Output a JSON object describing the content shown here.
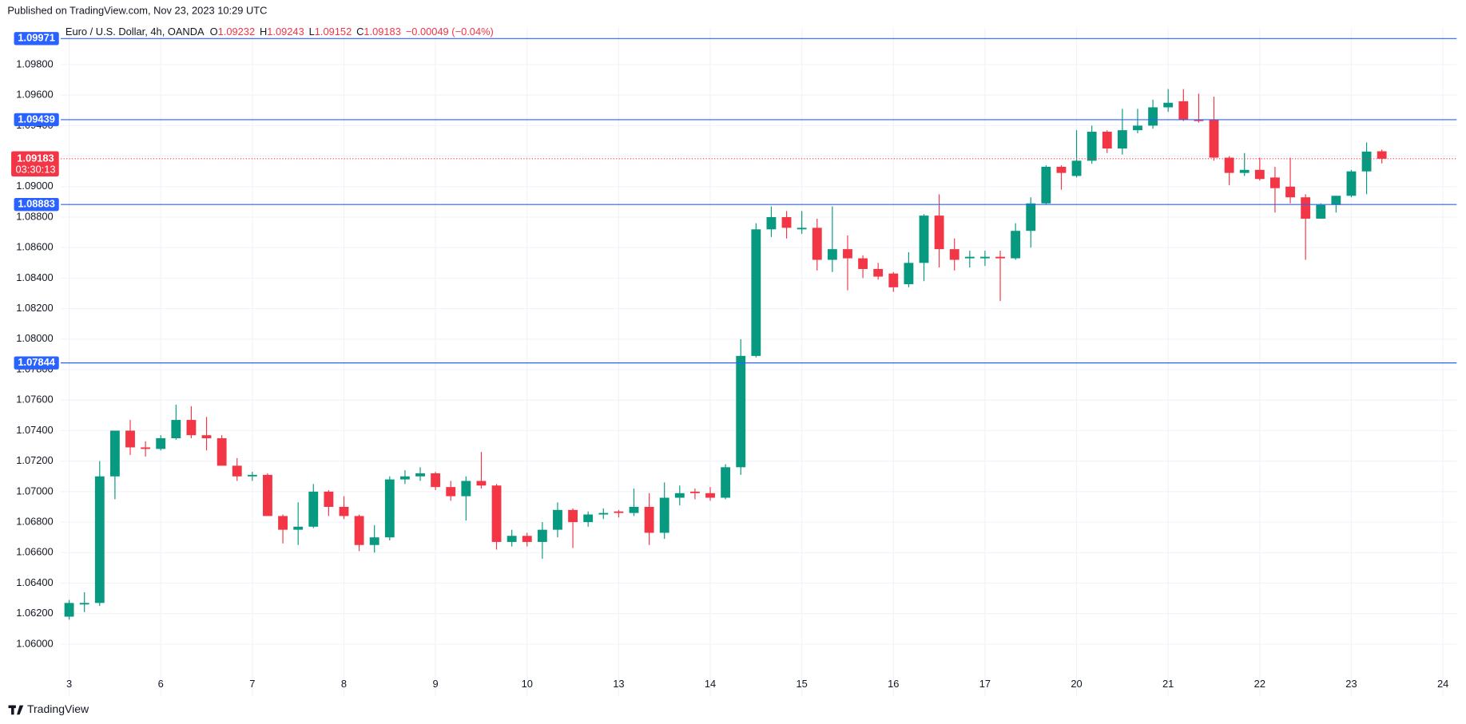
{
  "header": {
    "published": "Published on TradingView.com, Nov 23, 2023 10:29 UTC"
  },
  "footer": {
    "brand": "TradingView"
  },
  "legend": {
    "symbol": "Euro / U.S. Dollar, 4h, OANDA",
    "ohlc": [
      {
        "key": "O",
        "value": "1.09232"
      },
      {
        "key": "H",
        "value": "1.09243"
      },
      {
        "key": "L",
        "value": "1.09152"
      },
      {
        "key": "C",
        "value": "1.09183"
      }
    ],
    "change": "−0.00049 (−0.04%)"
  },
  "chart_data": {
    "type": "candlestick",
    "up_color": "#089981",
    "down_color": "#f23645",
    "grid": true,
    "open": [
      1.0618,
      1.0626,
      1.0627,
      1.071,
      1.074,
      1.0729,
      1.0728,
      1.0735,
      1.0747,
      1.0737,
      1.0735,
      1.0717,
      1.071,
      1.0711,
      1.0684,
      1.0675,
      1.0677,
      1.07,
      1.069,
      1.0684,
      1.0665,
      1.067,
      1.0708,
      1.071,
      1.0712,
      1.0703,
      1.0697,
      1.0707,
      1.0704,
      1.0667,
      1.0671,
      1.0667,
      1.0675,
      1.0688,
      1.068,
      1.0685,
      1.0687,
      1.0686,
      1.069,
      1.0673,
      1.0696,
      1.07,
      1.0699,
      1.0696,
      1.0716,
      1.0789,
      1.0872,
      1.088,
      1.0872,
      1.0873,
      1.0852,
      1.0859,
      1.0853,
      1.0846,
      1.0843,
      1.0836,
      1.085,
      1.0881,
      1.0859,
      1.0853,
      1.0853,
      1.0854,
      1.0853,
      1.0871,
      1.0889,
      1.0913,
      1.0907,
      1.0917,
      1.0936,
      1.0925,
      1.0937,
      1.094,
      1.0952,
      1.0956,
      1.0944,
      1.0944,
      1.0919,
      1.0909,
      1.0911,
      1.0906,
      1.09,
      1.0893,
      1.0879,
      1.0888,
      1.0894,
      1.091,
      1.09232
    ],
    "high": [
      1.0629,
      1.0634,
      1.072,
      1.074,
      1.0747,
      1.0733,
      1.0737,
      1.0757,
      1.0756,
      1.0749,
      1.0737,
      1.0722,
      1.0713,
      1.0712,
      1.0685,
      1.0693,
      1.0705,
      1.0701,
      1.0697,
      1.0685,
      1.0678,
      1.071,
      1.0714,
      1.0716,
      1.0713,
      1.0707,
      1.071,
      1.0726,
      1.0705,
      1.0675,
      1.0673,
      1.068,
      1.0693,
      1.0689,
      1.0687,
      1.0689,
      1.0688,
      1.0702,
      1.0699,
      1.0706,
      1.0704,
      1.0702,
      1.0703,
      1.0718,
      1.08,
      1.0876,
      1.0887,
      1.0884,
      1.0884,
      1.0879,
      1.0887,
      1.0868,
      1.0855,
      1.085,
      1.0844,
      1.0857,
      1.0882,
      1.0895,
      1.0866,
      1.0858,
      1.0858,
      1.0858,
      1.0876,
      1.0893,
      1.0914,
      1.0914,
      1.0937,
      1.094,
      1.0937,
      1.0951,
      1.0951,
      1.0957,
      1.0964,
      1.0964,
      1.0961,
      1.0959,
      1.092,
      1.0922,
      1.0919,
      1.0913,
      1.0919,
      1.0895,
      1.0889,
      1.0894,
      1.0911,
      1.0929,
      1.09243
    ],
    "low": [
      1.0616,
      1.0621,
      1.0625,
      1.0695,
      1.0724,
      1.0723,
      1.0727,
      1.0734,
      1.0735,
      1.0727,
      1.0717,
      1.0707,
      1.0707,
      1.0684,
      1.0666,
      1.0665,
      1.0676,
      1.0684,
      1.0682,
      1.0661,
      1.066,
      1.0668,
      1.0705,
      1.0707,
      1.0701,
      1.0694,
      1.0681,
      1.0702,
      1.0662,
      1.0664,
      1.0664,
      1.0656,
      1.067,
      1.0663,
      1.0677,
      1.0682,
      1.0683,
      1.0684,
      1.0665,
      1.0669,
      1.0691,
      1.0695,
      1.0694,
      1.0695,
      1.0711,
      1.0788,
      1.0867,
      1.0866,
      1.0869,
      1.0845,
      1.0844,
      1.0832,
      1.084,
      1.0839,
      1.0831,
      1.0834,
      1.0838,
      1.0847,
      1.0845,
      1.0847,
      1.0848,
      1.0825,
      1.0852,
      1.086,
      1.0888,
      1.0898,
      1.0906,
      1.0915,
      1.0922,
      1.0921,
      1.0935,
      1.0938,
      1.0949,
      1.0943,
      1.0942,
      1.0917,
      1.0901,
      1.0907,
      1.0904,
      1.0883,
      1.0889,
      1.0852,
      1.0879,
      1.0883,
      1.0893,
      1.0895,
      1.09152
    ],
    "close": [
      1.0627,
      1.0627,
      1.071,
      1.074,
      1.0729,
      1.0728,
      1.0735,
      1.0747,
      1.0737,
      1.0735,
      1.0717,
      1.071,
      1.0711,
      1.0684,
      1.0675,
      1.0677,
      1.07,
      1.069,
      1.0684,
      1.0665,
      1.067,
      1.0708,
      1.071,
      1.0712,
      1.0703,
      1.0697,
      1.0707,
      1.0704,
      1.0667,
      1.0671,
      1.0667,
      1.0675,
      1.0688,
      1.068,
      1.0685,
      1.0686,
      1.0686,
      1.069,
      1.0673,
      1.0696,
      1.0699,
      1.0699,
      1.0696,
      1.0716,
      1.0789,
      1.0872,
      1.088,
      1.0873,
      1.0873,
      1.0852,
      1.0859,
      1.0853,
      1.0846,
      1.0841,
      1.0834,
      1.085,
      1.0881,
      1.0859,
      1.0852,
      1.0854,
      1.0854,
      1.0853,
      1.0871,
      1.0889,
      1.0913,
      1.0909,
      1.0917,
      1.0936,
      1.0925,
      1.0937,
      1.094,
      1.0952,
      1.0955,
      1.0944,
      1.0943,
      1.0919,
      1.0909,
      1.0911,
      1.0905,
      1.0899,
      1.0893,
      1.0879,
      1.0888,
      1.0894,
      1.091,
      1.0923,
      1.09183
    ],
    "xlim": [
      -0.55,
      90.9
    ],
    "xticks": [
      {
        "value": 0,
        "label": "3"
      },
      {
        "value": 6,
        "label": "6"
      },
      {
        "value": 12,
        "label": "7"
      },
      {
        "value": 18,
        "label": "8"
      },
      {
        "value": 24,
        "label": "9"
      },
      {
        "value": 30,
        "label": "10"
      },
      {
        "value": 36,
        "label": "13"
      },
      {
        "value": 42,
        "label": "14"
      },
      {
        "value": 48,
        "label": "15"
      },
      {
        "value": 54,
        "label": "16"
      },
      {
        "value": 60,
        "label": "17"
      },
      {
        "value": 66,
        "label": "20"
      },
      {
        "value": 72,
        "label": "21"
      },
      {
        "value": 78,
        "label": "22"
      },
      {
        "value": 84,
        "label": "23"
      },
      {
        "value": 90,
        "label": "24"
      }
    ],
    "ylim": [
      1.0566,
      1.1004
    ],
    "yticks": [
      {
        "value": 1.06,
        "label": "1.06000"
      },
      {
        "value": 1.062,
        "label": "1.06200"
      },
      {
        "value": 1.064,
        "label": "1.06400"
      },
      {
        "value": 1.066,
        "label": "1.06600"
      },
      {
        "value": 1.068,
        "label": "1.06800"
      },
      {
        "value": 1.07,
        "label": "1.07000"
      },
      {
        "value": 1.072,
        "label": "1.07200"
      },
      {
        "value": 1.074,
        "label": "1.07400"
      },
      {
        "value": 1.076,
        "label": "1.07600"
      },
      {
        "value": 1.078,
        "label": "1.07800"
      },
      {
        "value": 1.08,
        "label": "1.08000"
      },
      {
        "value": 1.082,
        "label": "1.08200"
      },
      {
        "value": 1.084,
        "label": "1.08400"
      },
      {
        "value": 1.086,
        "label": "1.08600"
      },
      {
        "value": 1.088,
        "label": "1.08800"
      },
      {
        "value": 1.09,
        "label": "1.09000"
      },
      {
        "value": 1.092,
        "label": "1.09200"
      },
      {
        "value": 1.094,
        "label": "1.09400"
      },
      {
        "value": 1.096,
        "label": "1.09600"
      },
      {
        "value": 1.098,
        "label": "1.09800"
      }
    ],
    "levels": [
      1.09971,
      1.09439,
      1.08883,
      1.07844
    ],
    "level_color": "#2962ff",
    "current_price": 1.09183,
    "countdown": "03:30:13",
    "current_color": "#f23645"
  }
}
